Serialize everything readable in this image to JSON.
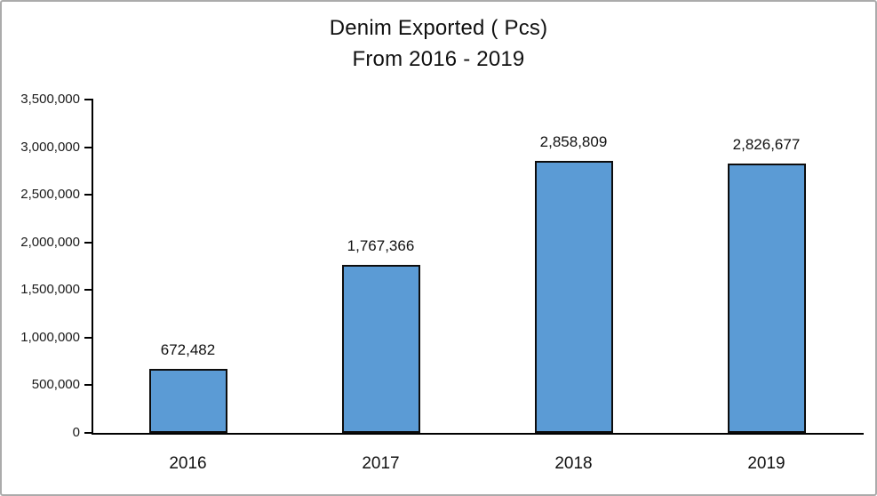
{
  "title": {
    "line1": "Denim Exported ( Pcs)",
    "line2": "From 2016 - 2019"
  },
  "chart_data": {
    "type": "bar",
    "title": "Denim Exported ( Pcs)",
    "subtitle": "From 2016 - 2019",
    "categories": [
      "2016",
      "2017",
      "2018",
      "2019"
    ],
    "values": [
      672482,
      1767366,
      2858809,
      2826677
    ],
    "value_labels": [
      "672,482",
      "1,767,366",
      "2,858,809",
      "2,826,677"
    ],
    "xlabel": "",
    "ylabel": "",
    "ylim": [
      0,
      3500000
    ],
    "ytick_step": 500000,
    "ytick_labels": [
      "0",
      "500,000",
      "1,000,000",
      "1,500,000",
      "2,000,000",
      "2,500,000",
      "3,000,000",
      "3,500,000"
    ],
    "grid": false,
    "legend_position": "none",
    "colors": {
      "bar_fill": "#5B9BD5",
      "bar_border": "#0d0d0d",
      "axis": "#000000",
      "text": "#1a1a1a",
      "frame_border": "#ababab",
      "background": "#ffffff"
    }
  }
}
